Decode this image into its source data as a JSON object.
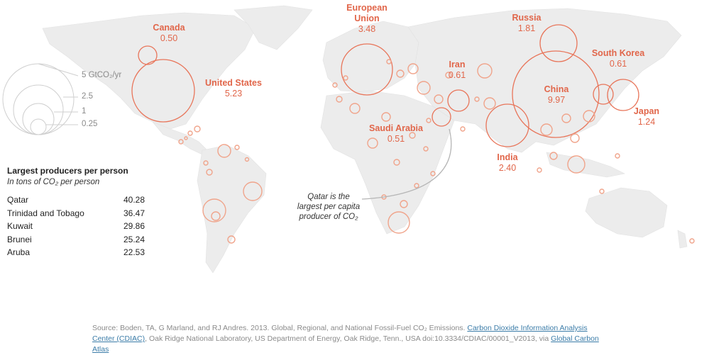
{
  "legend": {
    "sizes": [
      {
        "label": "5 GtCO₂/yr",
        "value": 5
      },
      {
        "label": "2.5",
        "value": 2.5
      },
      {
        "label": "1",
        "value": 1
      },
      {
        "label": "0.25",
        "value": 0.25
      }
    ]
  },
  "countries": [
    {
      "name": "Canada",
      "value": "0.50"
    },
    {
      "name": "United States",
      "value": "5.23"
    },
    {
      "name": "European Union",
      "value": "3.48"
    },
    {
      "name": "Russia",
      "value": "1.81"
    },
    {
      "name": "Iran",
      "value": "0.61"
    },
    {
      "name": "South Korea",
      "value": "0.61"
    },
    {
      "name": "China",
      "value": "9.97"
    },
    {
      "name": "Japan",
      "value": "1.24"
    },
    {
      "name": "Saudi Arabia",
      "value": "0.51"
    },
    {
      "name": "India",
      "value": "2.40"
    }
  ],
  "per_person": {
    "title": "Largest producers per person",
    "subtitle": "In tons of CO₂ per person",
    "rows": [
      {
        "name": "Qatar",
        "value": "40.28"
      },
      {
        "name": "Trinidad and Tobago",
        "value": "36.47"
      },
      {
        "name": "Kuwait",
        "value": "29.86"
      },
      {
        "name": "Brunei",
        "value": "25.24"
      },
      {
        "name": "Aruba",
        "value": "22.53"
      }
    ]
  },
  "annotation": {
    "line1": "Qatar is the",
    "line2": "largest per capita",
    "line3": "producer of CO₂"
  },
  "source": {
    "prefix": "Source: Boden, TA, G Marland, and RJ Andres. 2013. Global, Regional, and National Fossil-Fuel CO₂ Emissions. ",
    "link1": "Carbon Dioxide Information Analysis Center (CDIAC)",
    "middle": ", Oak Ridge National Laboratory, US Department of Energy, Oak Ridge, Tenn., USA doi:10.3334/CDIAC/00001_V2013, via ",
    "link2": "Global Carbon Atlas"
  },
  "colors": {
    "accent": "#e1664a",
    "land": "#ececec",
    "bubble_light": "#f0a48b"
  }
}
